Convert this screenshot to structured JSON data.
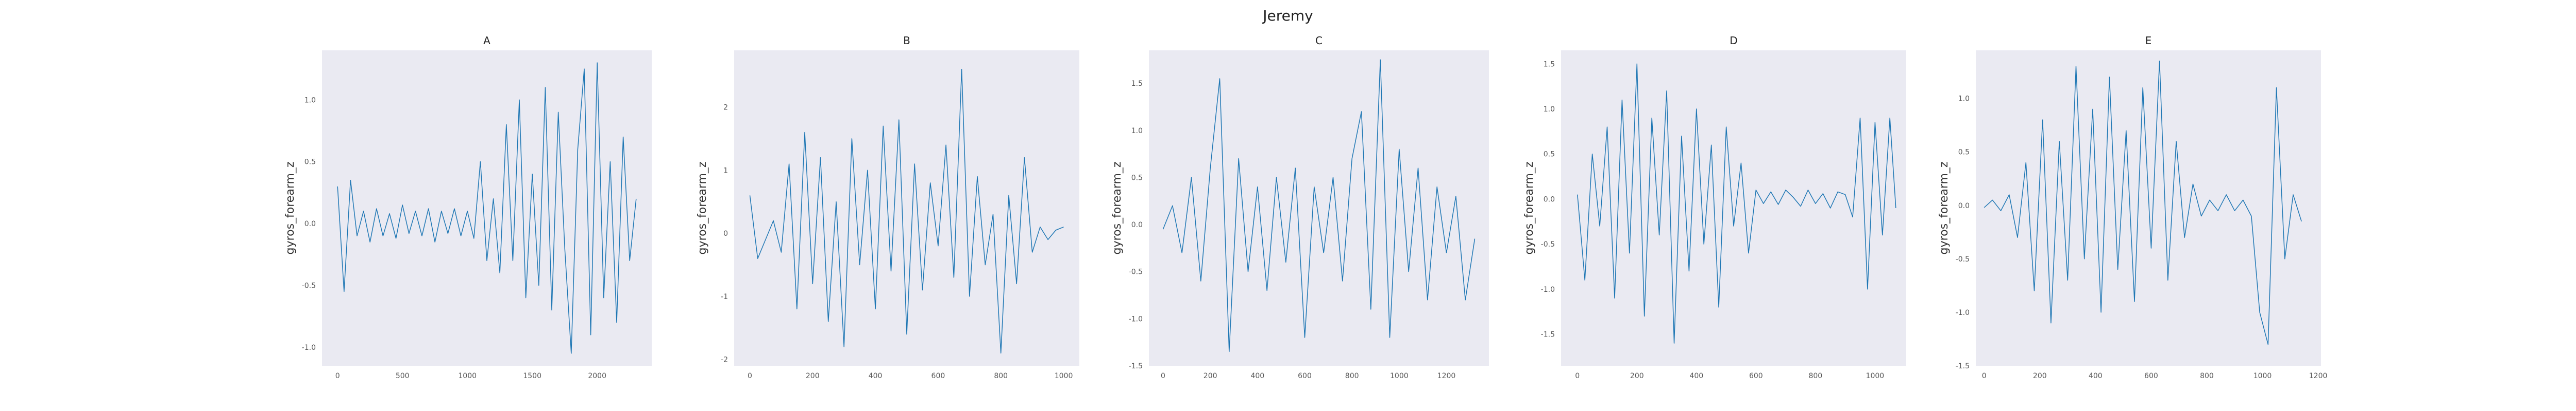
{
  "figure": {
    "title": "Jeremy"
  },
  "colors": {
    "line": "#1f77b4",
    "plot_bg": "#eaeaf2"
  },
  "chart_data": [
    {
      "type": "line",
      "title": "A",
      "xlabel": "",
      "ylabel": "gyros_forearm_z",
      "xlim": [
        -120,
        2420
      ],
      "ylim": [
        -1.15,
        1.4
      ],
      "xticks": [
        0,
        500,
        1000,
        1500,
        2000
      ],
      "yticks": [
        -1.0,
        -0.5,
        0.0,
        0.5,
        1.0
      ],
      "grid": false,
      "x": [
        0,
        50,
        100,
        150,
        200,
        250,
        300,
        350,
        400,
        450,
        500,
        550,
        600,
        650,
        700,
        750,
        800,
        850,
        900,
        950,
        1000,
        1050,
        1100,
        1150,
        1200,
        1250,
        1300,
        1350,
        1400,
        1450,
        1500,
        1550,
        1600,
        1650,
        1700,
        1750,
        1800,
        1850,
        1900,
        1950,
        2000,
        2050,
        2100,
        2150,
        2200,
        2250,
        2300
      ],
      "y": [
        0.3,
        -0.55,
        0.35,
        -0.1,
        0.1,
        -0.15,
        0.12,
        -0.1,
        0.08,
        -0.12,
        0.15,
        -0.08,
        0.1,
        -0.1,
        0.12,
        -0.15,
        0.1,
        -0.08,
        0.12,
        -0.1,
        0.1,
        -0.12,
        0.5,
        -0.3,
        0.2,
        -0.4,
        0.8,
        -0.3,
        1.0,
        -0.6,
        0.4,
        -0.5,
        1.1,
        -0.7,
        0.9,
        -0.2,
        -1.05,
        0.6,
        1.25,
        -0.9,
        1.3,
        -0.6,
        0.5,
        -0.8,
        0.7,
        -0.3,
        0.2
      ]
    },
    {
      "type": "line",
      "title": "B",
      "xlabel": "",
      "ylabel": "gyros_forearm_z",
      "xlim": [
        -50,
        1050
      ],
      "ylim": [
        -2.1,
        2.9
      ],
      "xticks": [
        0,
        200,
        400,
        600,
        800,
        1000
      ],
      "yticks": [
        -2,
        -1,
        0,
        1,
        2
      ],
      "grid": false,
      "x": [
        0,
        25,
        50,
        75,
        100,
        125,
        150,
        175,
        200,
        225,
        250,
        275,
        300,
        325,
        350,
        375,
        400,
        425,
        450,
        475,
        500,
        525,
        550,
        575,
        600,
        625,
        650,
        675,
        700,
        725,
        750,
        775,
        800,
        825,
        850,
        875,
        900,
        925,
        950,
        975,
        1000
      ],
      "y": [
        0.6,
        -0.4,
        -0.1,
        0.2,
        -0.3,
        1.1,
        -1.2,
        1.6,
        -0.8,
        1.2,
        -1.4,
        0.5,
        -1.8,
        1.5,
        -0.5,
        1.0,
        -1.2,
        1.7,
        -0.6,
        1.8,
        -1.6,
        1.1,
        -0.9,
        0.8,
        -0.2,
        1.4,
        -0.7,
        2.6,
        -1.0,
        0.9,
        -0.5,
        0.3,
        -1.9,
        0.6,
        -0.8,
        1.2,
        -0.3,
        0.1,
        -0.1,
        0.05,
        0.1
      ]
    },
    {
      "type": "line",
      "title": "C",
      "xlabel": "",
      "ylabel": "gyros_forearm_z",
      "xlim": [
        -60,
        1380
      ],
      "ylim": [
        -1.5,
        1.85
      ],
      "xticks": [
        0,
        200,
        400,
        600,
        800,
        1000,
        1200
      ],
      "yticks": [
        -1.5,
        -1.0,
        -0.5,
        0.0,
        0.5,
        1.0,
        1.5
      ],
      "grid": false,
      "x": [
        0,
        40,
        80,
        120,
        160,
        200,
        240,
        280,
        320,
        360,
        400,
        440,
        480,
        520,
        560,
        600,
        640,
        680,
        720,
        760,
        800,
        840,
        880,
        920,
        960,
        1000,
        1040,
        1080,
        1120,
        1160,
        1200,
        1240,
        1280,
        1320
      ],
      "y": [
        -0.05,
        0.2,
        -0.3,
        0.5,
        -0.6,
        0.6,
        1.55,
        -1.35,
        0.7,
        -0.5,
        0.4,
        -0.7,
        0.5,
        -0.4,
        0.6,
        -1.2,
        0.4,
        -0.3,
        0.5,
        -0.6,
        0.7,
        1.2,
        -0.9,
        1.75,
        -1.2,
        0.8,
        -0.5,
        0.6,
        -0.8,
        0.4,
        -0.3,
        0.3,
        -0.8,
        -0.15
      ]
    },
    {
      "type": "line",
      "title": "D",
      "xlabel": "",
      "ylabel": "gyros_forearm_z",
      "xlim": [
        -55,
        1105
      ],
      "ylim": [
        -1.85,
        1.65
      ],
      "xticks": [
        0,
        200,
        400,
        600,
        800,
        1000
      ],
      "yticks": [
        -1.5,
        -1.0,
        -0.5,
        0.0,
        0.5,
        1.0,
        1.5
      ],
      "grid": false,
      "x": [
        0,
        25,
        50,
        75,
        100,
        125,
        150,
        175,
        200,
        225,
        250,
        275,
        300,
        325,
        350,
        375,
        400,
        425,
        450,
        475,
        500,
        525,
        550,
        575,
        600,
        625,
        650,
        675,
        700,
        725,
        750,
        775,
        800,
        825,
        850,
        875,
        900,
        925,
        950,
        975,
        1000,
        1025,
        1050,
        1070
      ],
      "y": [
        0.05,
        -0.9,
        0.5,
        -0.3,
        0.8,
        -1.1,
        1.1,
        -0.6,
        1.5,
        -1.3,
        0.9,
        -0.4,
        1.2,
        -1.6,
        0.7,
        -0.8,
        1.0,
        -0.5,
        0.6,
        -1.2,
        0.8,
        -0.3,
        0.4,
        -0.6,
        0.1,
        -0.05,
        0.08,
        -0.06,
        0.1,
        0.02,
        -0.08,
        0.1,
        -0.05,
        0.06,
        -0.1,
        0.08,
        0.05,
        -0.2,
        0.9,
        -1.0,
        0.85,
        -0.4,
        0.9,
        -0.1
      ]
    },
    {
      "type": "line",
      "title": "E",
      "xlabel": "",
      "ylabel": "gyros_forearm_z",
      "xlim": [
        -30,
        1210
      ],
      "ylim": [
        -1.5,
        1.45
      ],
      "xticks": [
        0,
        200,
        400,
        600,
        800,
        1000,
        1200
      ],
      "yticks": [
        -1.5,
        -1.0,
        -0.5,
        0.0,
        0.5,
        1.0
      ],
      "grid": false,
      "x": [
        0,
        30,
        60,
        90,
        120,
        150,
        180,
        210,
        240,
        270,
        300,
        330,
        360,
        390,
        420,
        450,
        480,
        510,
        540,
        570,
        600,
        630,
        660,
        690,
        720,
        750,
        780,
        810,
        840,
        870,
        900,
        930,
        960,
        990,
        1020,
        1050,
        1080,
        1110,
        1140
      ],
      "y": [
        -0.02,
        0.05,
        -0.05,
        0.1,
        -0.3,
        0.4,
        -0.8,
        0.8,
        -1.1,
        0.6,
        -0.7,
        1.3,
        -0.5,
        0.9,
        -1.0,
        1.2,
        -0.6,
        0.7,
        -0.9,
        1.1,
        -0.4,
        1.35,
        -0.7,
        0.6,
        -0.3,
        0.2,
        -0.1,
        0.05,
        -0.05,
        0.1,
        -0.05,
        0.05,
        -0.1,
        -1.0,
        -1.3,
        1.1,
        -0.5,
        0.1,
        -0.15
      ]
    }
  ]
}
